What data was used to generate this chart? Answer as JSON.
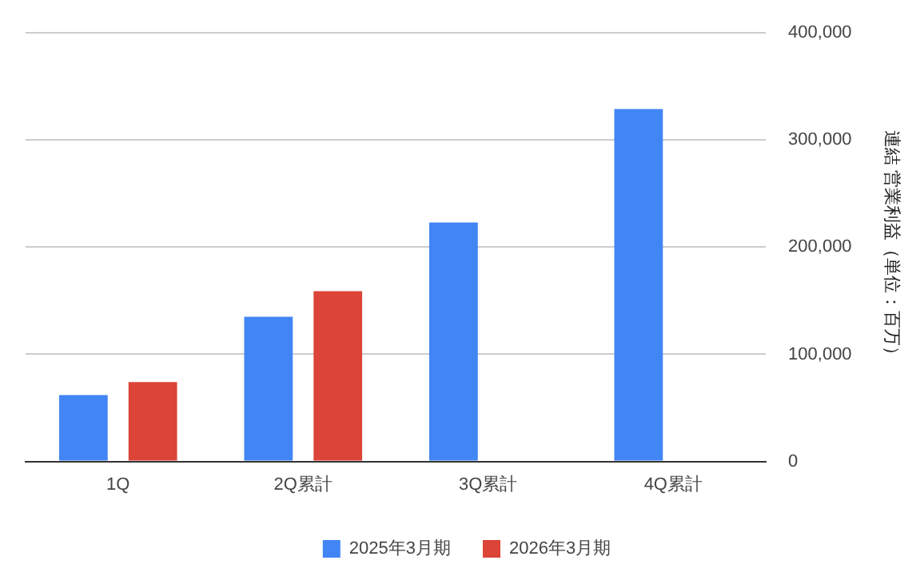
{
  "chart_data": {
    "type": "bar",
    "categories": [
      "1Q",
      "2Q累計",
      "3Q累計",
      "4Q累計"
    ],
    "series": [
      {
        "name": "2025年3月期",
        "color": "#4285f4",
        "values": [
          62000,
          135000,
          223000,
          329000
        ]
      },
      {
        "name": "2026年3月期",
        "color": "#db4437",
        "values": [
          74000,
          159000,
          null,
          null
        ]
      }
    ],
    "ylabel": "連結 営業利益（単位：百万）",
    "ylim": [
      0,
      400000
    ],
    "yticks": [
      {
        "value": 0,
        "label": "0"
      },
      {
        "value": 100000,
        "label": "100,000"
      },
      {
        "value": 200000,
        "label": "200,000"
      },
      {
        "value": 300000,
        "label": "300,000"
      },
      {
        "value": 400000,
        "label": "400,000"
      }
    ],
    "grid": "y",
    "legend": "bottom"
  }
}
